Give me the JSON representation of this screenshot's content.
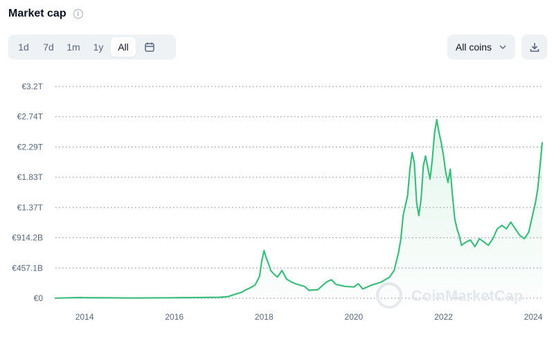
{
  "header": {
    "title": "Market cap",
    "info_icon": "info-icon"
  },
  "range_tabs": [
    {
      "label": "1d",
      "active": false
    },
    {
      "label": "7d",
      "active": false
    },
    {
      "label": "1m",
      "active": false
    },
    {
      "label": "1y",
      "active": false
    },
    {
      "label": "All",
      "active": true
    }
  ],
  "calendar_icon": "calendar-icon",
  "coins_select": {
    "label": "All coins",
    "icon": "chevron-down-icon"
  },
  "download_icon": "download-icon",
  "watermark": "CoinMarketCap",
  "colors": {
    "line": "#3dbd7d",
    "accent_bg": "#eff2f5",
    "grid": "#7a8699"
  },
  "chart_data": {
    "type": "area",
    "title": "Market cap",
    "xlabel": "",
    "ylabel": "",
    "y_ticks": [
      "€0",
      "€457.1B",
      "€914.2B",
      "€1.37T",
      "€1.83T",
      "€2.29T",
      "€2.74T",
      "€3.2T"
    ],
    "y_tick_values_billion_eur": [
      0,
      457.1,
      914.2,
      1371.3,
      1828.4,
      2285.5,
      2742.6,
      3199.7
    ],
    "x_ticks": [
      "2014",
      "2016",
      "2018",
      "2020",
      "2022",
      "2024"
    ],
    "x_tick_values_year": [
      2014,
      2016,
      2018,
      2020,
      2022,
      2024
    ],
    "xlim_year": [
      2013.35,
      2024.2
    ],
    "ylim_billion_eur": [
      0,
      3199.7
    ],
    "grid": "horizontal-dotted",
    "series": [
      {
        "x_year": [
          2013.35,
          2013.9,
          2014.0,
          2014.5,
          2015.0,
          2015.5,
          2016.0,
          2016.5,
          2017.0,
          2017.2,
          2017.4,
          2017.5,
          2017.6,
          2017.7,
          2017.8,
          2017.9,
          2017.95,
          2018.0,
          2018.05,
          2018.1,
          2018.15,
          2018.2,
          2018.3,
          2018.4,
          2018.5,
          2018.6,
          2018.7,
          2018.8,
          2018.9,
          2019.0,
          2019.2,
          2019.4,
          2019.5,
          2019.6,
          2019.8,
          2020.0,
          2020.1,
          2020.2,
          2020.4,
          2020.6,
          2020.8,
          2020.9,
          2021.0,
          2021.05,
          2021.1,
          2021.2,
          2021.25,
          2021.3,
          2021.35,
          2021.4,
          2021.45,
          2021.5,
          2021.55,
          2021.6,
          2021.7,
          2021.75,
          2021.8,
          2021.85,
          2021.9,
          2021.95,
          2022.0,
          2022.05,
          2022.1,
          2022.15,
          2022.2,
          2022.25,
          2022.3,
          2022.35,
          2022.4,
          2022.5,
          2022.6,
          2022.7,
          2022.8,
          2022.9,
          2023.0,
          2023.1,
          2023.2,
          2023.3,
          2023.4,
          2023.5,
          2023.6,
          2023.7,
          2023.8,
          2023.9,
          2024.0,
          2024.05,
          2024.1,
          2024.15,
          2024.2
        ],
        "y_billion_eur": [
          2,
          10,
          8,
          6,
          4,
          5,
          7,
          10,
          15,
          25,
          70,
          90,
          130,
          160,
          200,
          330,
          560,
          720,
          610,
          520,
          420,
          380,
          320,
          420,
          290,
          250,
          220,
          200,
          180,
          120,
          130,
          250,
          280,
          210,
          180,
          170,
          220,
          140,
          200,
          240,
          320,
          420,
          700,
          900,
          1250,
          1550,
          1950,
          2200,
          2050,
          1450,
          1250,
          1500,
          2000,
          2150,
          1800,
          2100,
          2500,
          2700,
          2500,
          2350,
          2150,
          1900,
          1750,
          1950,
          1550,
          1200,
          1050,
          950,
          800,
          850,
          880,
          780,
          900,
          850,
          800,
          900,
          1050,
          1100,
          1050,
          1150,
          1050,
          950,
          900,
          1000,
          1300,
          1450,
          1650,
          2000,
          2350
        ]
      }
    ]
  }
}
